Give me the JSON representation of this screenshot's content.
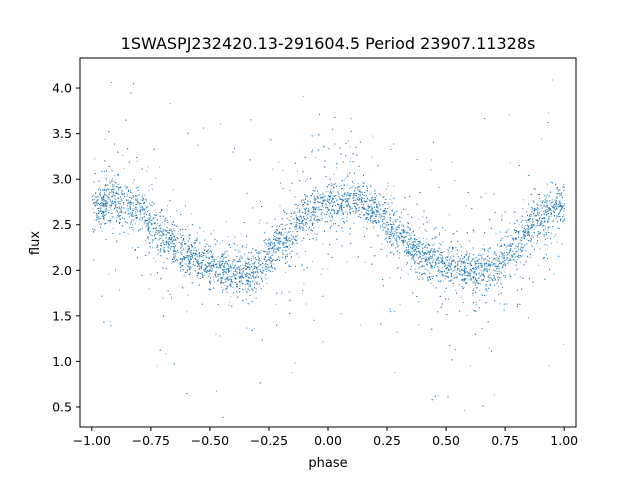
{
  "chart_data": {
    "type": "scatter",
    "title": "1SWASPJ232420.13-291604.5 Period 23907.11328s",
    "xlabel": "phase",
    "ylabel": "flux",
    "xlim": [
      -1.05,
      1.05
    ],
    "ylim": [
      0.28,
      4.33
    ],
    "xticks": [
      -1.0,
      -0.75,
      -0.5,
      -0.25,
      0.0,
      0.25,
      0.5,
      0.75,
      1.0
    ],
    "xtick_labels": [
      "−1.00",
      "−0.75",
      "−0.50",
      "−0.25",
      "0.00",
      "0.25",
      "0.50",
      "0.75",
      "1.00"
    ],
    "yticks": [
      0.5,
      1.0,
      1.5,
      2.0,
      2.5,
      3.0,
      3.5,
      4.0
    ],
    "ytick_labels": [
      "0.5",
      "1.0",
      "1.5",
      "2.0",
      "2.5",
      "3.0",
      "3.5",
      "4.0"
    ],
    "grid": false,
    "marker_color": "#1f77b4",
    "series": [
      {
        "phase_range": [
          -1.0,
          1.0
        ],
        "light_curve_profile": {
          "phase": [
            -1.0,
            -0.9,
            -0.8,
            -0.7,
            -0.6,
            -0.5,
            -0.4,
            -0.3,
            -0.2,
            -0.1,
            0.0,
            0.1,
            0.2,
            0.3,
            0.4,
            0.5,
            0.6,
            0.7,
            0.8,
            0.9,
            1.0
          ],
          "flux": [
            2.72,
            2.78,
            2.65,
            2.4,
            2.18,
            2.05,
            1.98,
            2.02,
            2.3,
            2.6,
            2.72,
            2.78,
            2.65,
            2.4,
            2.18,
            2.05,
            1.98,
            2.02,
            2.3,
            2.6,
            2.72
          ]
        },
        "approx_scatter_sigma": 0.12,
        "approx_point_count": 9000
      }
    ]
  }
}
